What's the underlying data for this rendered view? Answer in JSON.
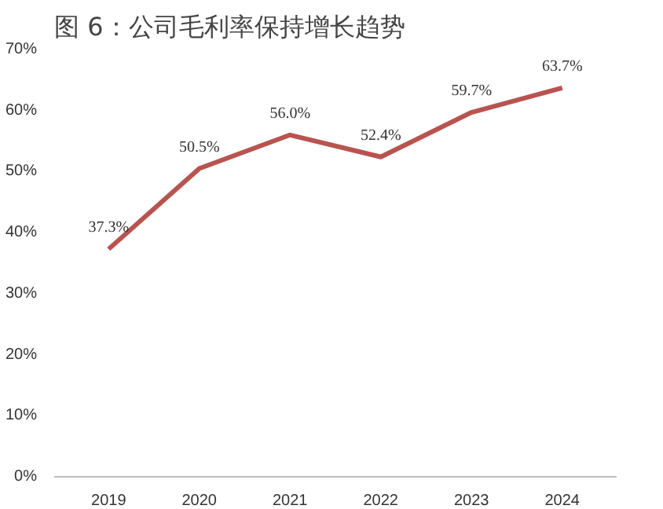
{
  "chart_data": {
    "type": "line",
    "title": "图 6：公司毛利率保持增长趋势",
    "categories": [
      "2019",
      "2020",
      "2021",
      "2022",
      "2023",
      "2024"
    ],
    "series": [
      {
        "color": "#b85450",
        "values": [
          37.3,
          50.5,
          56.0,
          52.4,
          59.7,
          63.7
        ],
        "value_labels": [
          "37.3%",
          "50.5%",
          "56.0%",
          "52.4%",
          "59.7%",
          "63.7%"
        ]
      }
    ],
    "ylim": [
      0,
      70
    ],
    "yticks": [
      {
        "value": 0,
        "label": "0%"
      },
      {
        "value": 10,
        "label": "10%"
      },
      {
        "value": 20,
        "label": "20%"
      },
      {
        "value": 30,
        "label": "30%"
      },
      {
        "value": 40,
        "label": "40%"
      },
      {
        "value": 50,
        "label": "50%"
      },
      {
        "value": 60,
        "label": "60%"
      },
      {
        "value": 70,
        "label": "70%"
      }
    ],
    "grid": false,
    "marker": "none",
    "line_style": "solid"
  }
}
